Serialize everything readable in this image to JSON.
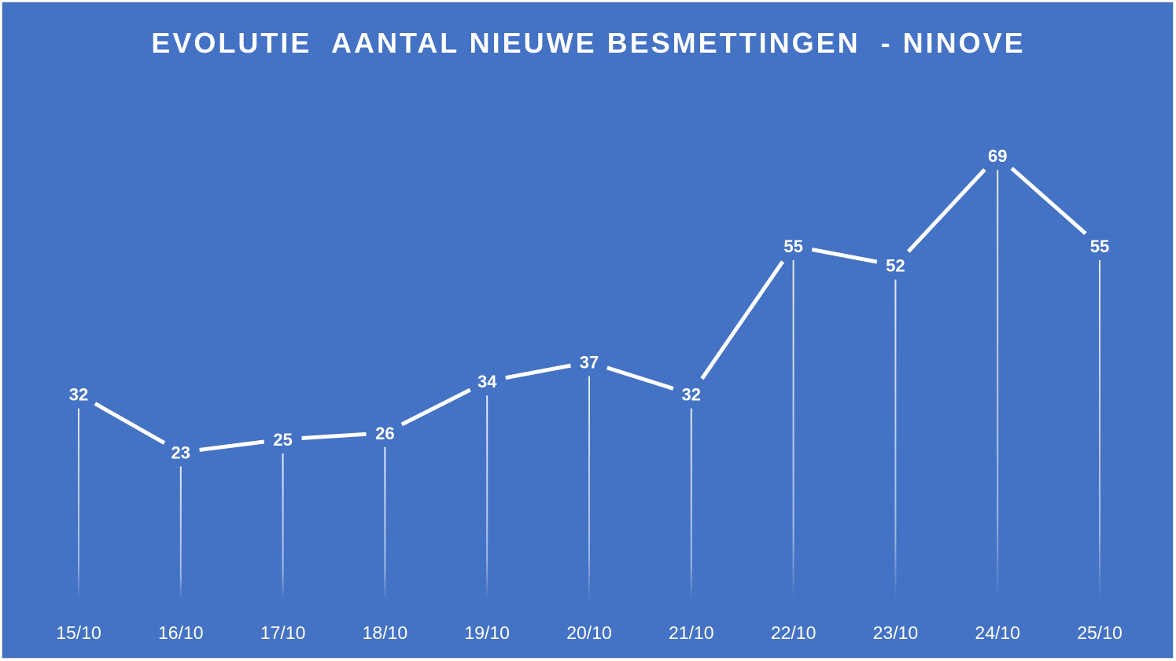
{
  "chart_data": {
    "type": "line",
    "title": "EVOLUTIE  AANTAL NIEUWE BESMETTINGEN  - NINOVE",
    "xlabel": "",
    "ylabel": "",
    "categories": [
      "15/10",
      "16/10",
      "17/10",
      "18/10",
      "19/10",
      "20/10",
      "21/10",
      "22/10",
      "23/10",
      "24/10",
      "25/10"
    ],
    "series": [
      {
        "values": [
          32,
          23,
          25,
          26,
          34,
          37,
          32,
          55,
          52,
          69,
          55
        ]
      }
    ],
    "ylim": [
      0,
      75
    ],
    "grid": false,
    "legend": "none",
    "drop_lines": true,
    "data_labels": true,
    "colors": {
      "background": "#4472C4",
      "line": "#FFFFFF",
      "text": "#FFFFFF"
    }
  }
}
